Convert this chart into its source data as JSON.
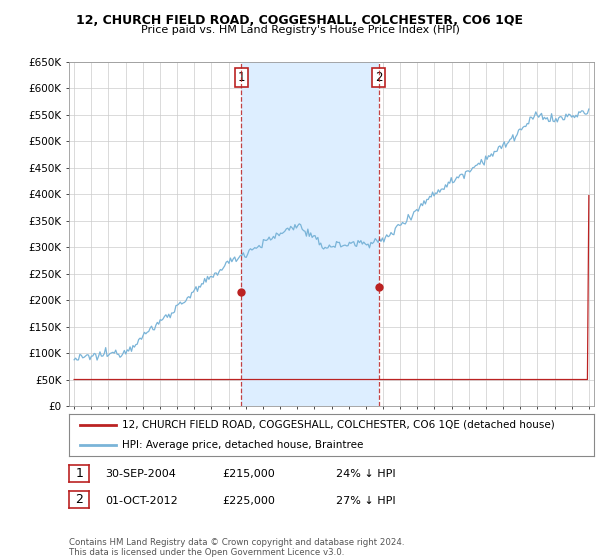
{
  "title1": "12, CHURCH FIELD ROAD, COGGESHALL, COLCHESTER, CO6 1QE",
  "title2": "Price paid vs. HM Land Registry's House Price Index (HPI)",
  "ylim": [
    0,
    650000
  ],
  "yticks": [
    0,
    50000,
    100000,
    150000,
    200000,
    250000,
    300000,
    350000,
    400000,
    450000,
    500000,
    550000,
    600000,
    650000
  ],
  "ytick_labels": [
    "£0",
    "£50K",
    "£100K",
    "£150K",
    "£200K",
    "£250K",
    "£300K",
    "£350K",
    "£400K",
    "£450K",
    "£500K",
    "£550K",
    "£600K",
    "£650K"
  ],
  "hpi_color": "#7ab4d8",
  "price_color": "#bb2222",
  "shade_color": "#ddeeff",
  "sale1_date": 2004.75,
  "sale1_price": 215000,
  "sale2_date": 2012.75,
  "sale2_price": 225000,
  "legend1": "12, CHURCH FIELD ROAD, COGGESHALL, COLCHESTER, CO6 1QE (detached house)",
  "legend2": "HPI: Average price, detached house, Braintree",
  "note1_label": "1",
  "note1_date": "30-SEP-2004",
  "note1_price": "£215,000",
  "note1_pct": "24% ↓ HPI",
  "note2_label": "2",
  "note2_date": "01-OCT-2012",
  "note2_price": "£225,000",
  "note2_pct": "27% ↓ HPI",
  "footer": "Contains HM Land Registry data © Crown copyright and database right 2024.\nThis data is licensed under the Open Government Licence v3.0.",
  "background_color": "#ffffff",
  "grid_color": "#cccccc"
}
